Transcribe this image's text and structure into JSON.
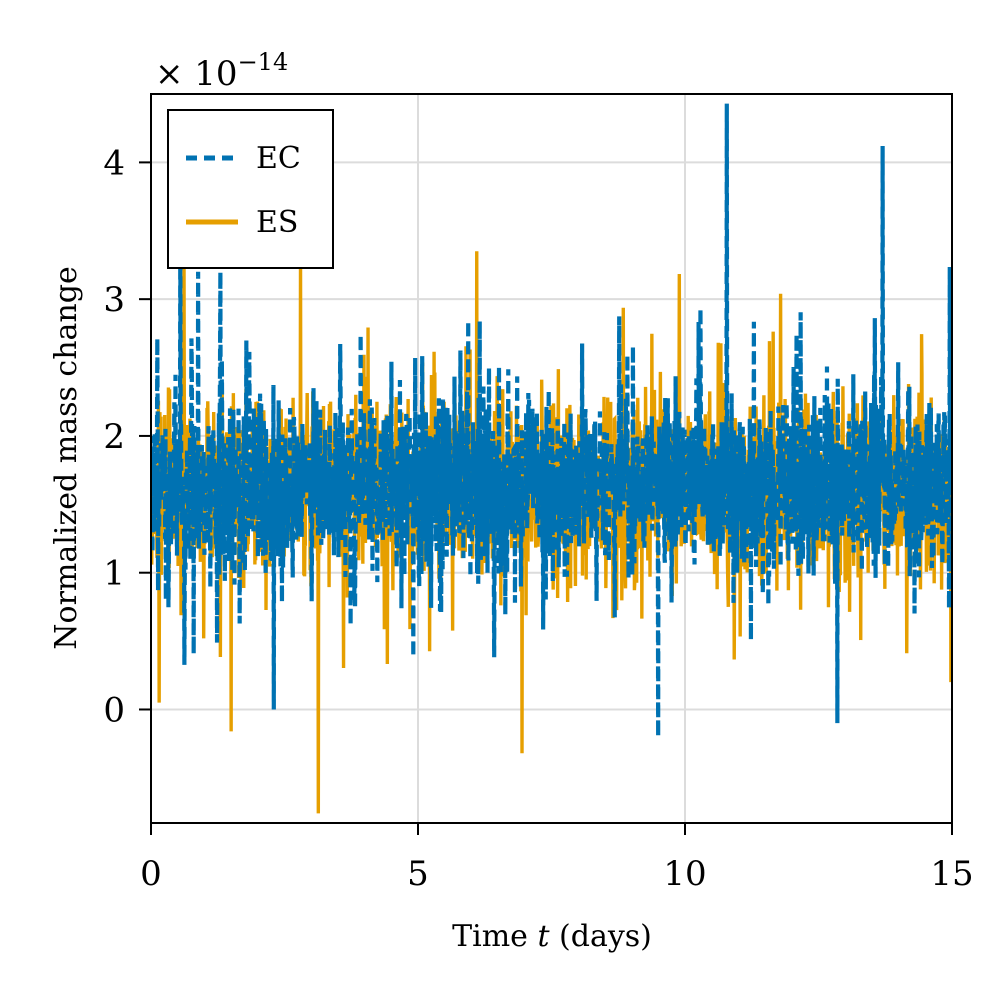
{
  "chart_data": {
    "type": "line",
    "title": "",
    "xlabel": "Time t (days)",
    "xlabel_prefix": "Time ",
    "xlabel_var": "t",
    "xlabel_suffix": " (days)",
    "ylabel": "Normalized mass change",
    "y_scale_prefix": "× 10",
    "y_scale_exponent": "−14",
    "xlim": [
      0,
      15
    ],
    "ylim": [
      -0.83,
      4.5
    ],
    "xticks": [
      0,
      5,
      10,
      15
    ],
    "xtick_labels": [
      "0",
      "5",
      "10",
      "15"
    ],
    "yticks": [
      0,
      1,
      2,
      3,
      4
    ],
    "ytick_labels": [
      "0",
      "1",
      "2",
      "3",
      "4"
    ],
    "grid": true,
    "legend_position": "top-left",
    "sample_count": 2160,
    "series": [
      {
        "name": "EC",
        "style": "dashed",
        "color": "#0072B2",
        "baseline": 1.62,
        "band": 0.42,
        "seed": 7,
        "spikes": [
          {
            "t": 0.55,
            "v": 3.55
          },
          {
            "t": 0.88,
            "v": 3.2
          },
          {
            "t": 1.3,
            "v": 3.2
          },
          {
            "t": 2.3,
            "v": 0.0
          },
          {
            "t": 9.5,
            "v": -0.2
          },
          {
            "t": 10.78,
            "v": 4.43
          },
          {
            "t": 12.85,
            "v": -0.1
          },
          {
            "t": 13.7,
            "v": 4.12
          }
        ]
      },
      {
        "name": "ES",
        "style": "solid",
        "color": "#E69F00",
        "baseline": 1.6,
        "band": 0.42,
        "seed": 21,
        "spikes": [
          {
            "t": 0.15,
            "v": 0.05
          },
          {
            "t": 0.62,
            "v": 3.25
          },
          {
            "t": 1.5,
            "v": -0.16
          },
          {
            "t": 2.8,
            "v": 3.3
          },
          {
            "t": 3.13,
            "v": -0.76
          },
          {
            "t": 6.1,
            "v": 3.35
          },
          {
            "t": 6.95,
            "v": -0.32
          },
          {
            "t": 14.98,
            "v": 0.2
          }
        ]
      }
    ]
  }
}
